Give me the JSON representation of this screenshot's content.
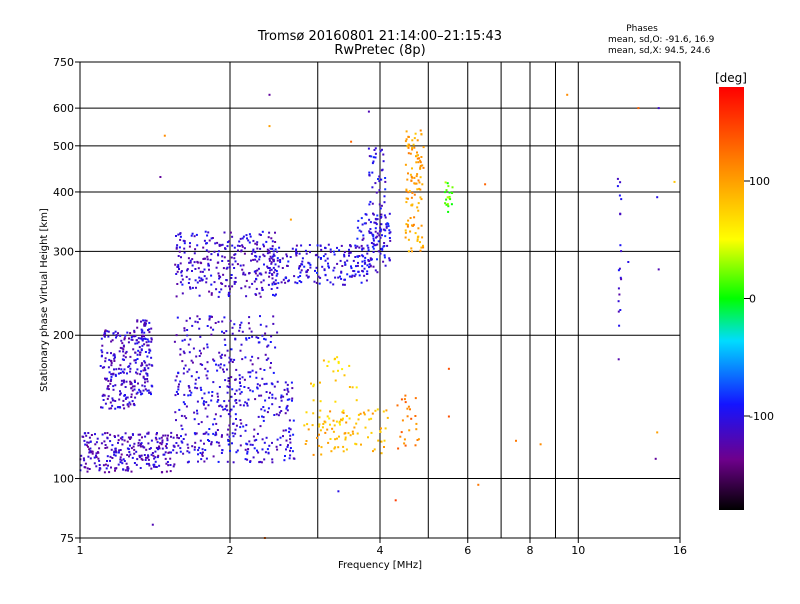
{
  "chart_data": {
    "type": "scatter",
    "title": "Tromsø 20160801 21:14:00–21:15:43",
    "subtitle": "RwPretec (8p)",
    "xlabel": "Frequency [MHz]",
    "ylabel": "Stationary phase Virtual Height [km]",
    "x_scale": "log",
    "y_scale": "log",
    "xlim": [
      1,
      16
    ],
    "ylim": [
      75,
      750
    ],
    "x_ticks": [
      1,
      2,
      4,
      6,
      8,
      10,
      16
    ],
    "x_minor_gridlines": [
      3,
      5,
      7,
      9
    ],
    "y_ticks": [
      75,
      100,
      200,
      300,
      400,
      500,
      600,
      750
    ],
    "grid": true,
    "stats": {
      "header": "Phases",
      "line_o": "mean, sd,O: -91.6, 16.9",
      "line_x": "mean, sd,X:  94.5, 24.6"
    },
    "colorbar": {
      "label": "[deg]",
      "range": [
        -180,
        180
      ],
      "ticks": [
        100,
        0,
        -100
      ],
      "placement": "right"
    },
    "clusters": [
      {
        "x": [
          1.0,
          1.55
        ],
        "y": [
          103,
          125
        ],
        "phase": -115,
        "count": 260
      },
      {
        "x": [
          1.1,
          1.3
        ],
        "y": [
          140,
          205
        ],
        "phase": -112,
        "count": 190
      },
      {
        "x": [
          1.3,
          1.4
        ],
        "y": [
          150,
          215
        ],
        "phase": -108,
        "count": 110
      },
      {
        "x": [
          1.55,
          2.7
        ],
        "y": [
          108,
          160
        ],
        "phase": -106,
        "count": 330
      },
      {
        "x": [
          1.55,
          2.5
        ],
        "y": [
          160,
          220
        ],
        "phase": -108,
        "count": 170
      },
      {
        "x": [
          1.55,
          2.5
        ],
        "y": [
          240,
          330
        ],
        "phase": -110,
        "count": 300
      },
      {
        "x": [
          2.4,
          3.8
        ],
        "y": [
          255,
          310
        ],
        "phase": -105,
        "count": 190
      },
      {
        "x": [
          3.6,
          4.2
        ],
        "y": [
          270,
          360
        ],
        "phase": -102,
        "count": 90
      },
      {
        "x": [
          3.8,
          4.1
        ],
        "y": [
          300,
          500
        ],
        "phase": -100,
        "count": 70
      },
      {
        "x": [
          2.8,
          4.2
        ],
        "y": [
          112,
          140
        ],
        "phase": 90,
        "count": 85
      },
      {
        "x": [
          2.9,
          3.6
        ],
        "y": [
          120,
          180
        ],
        "phase": 75,
        "count": 40
      },
      {
        "x": [
          4.5,
          4.9
        ],
        "y": [
          300,
          540
        ],
        "phase": 100,
        "count": 110
      },
      {
        "x": [
          4.3,
          4.8
        ],
        "y": [
          115,
          150
        ],
        "phase": 120,
        "count": 25
      },
      {
        "x": [
          5.4,
          5.6
        ],
        "y": [
          360,
          420
        ],
        "phase": 20,
        "count": 20
      },
      {
        "x": [
          12,
          12.2
        ],
        "y": [
          170,
          450
        ],
        "phase": -110,
        "count": 20
      }
    ],
    "scattered_points": [
      [
        1.45,
        430,
        -130
      ],
      [
        1.48,
        525,
        110
      ],
      [
        2.4,
        640,
        -130
      ],
      [
        2.4,
        550,
        100
      ],
      [
        3.8,
        590,
        -120
      ],
      [
        3.5,
        510,
        130
      ],
      [
        9.5,
        640,
        110
      ],
      [
        13.2,
        600,
        130
      ],
      [
        14.5,
        600,
        -110
      ],
      [
        15.6,
        420,
        80
      ],
      [
        14.4,
        390,
        -100
      ],
      [
        14.5,
        275,
        -120
      ],
      [
        12.6,
        285,
        -100
      ],
      [
        14.3,
        110,
        -130
      ],
      [
        6.3,
        97,
        120
      ],
      [
        4.3,
        90,
        150
      ],
      [
        3.3,
        94,
        -100
      ],
      [
        1.4,
        80,
        -120
      ],
      [
        6.5,
        415,
        130
      ],
      [
        7.5,
        120,
        120
      ],
      [
        8.4,
        118,
        110
      ],
      [
        14.4,
        125,
        100
      ],
      [
        5.5,
        170,
        140
      ],
      [
        5.5,
        135,
        140
      ],
      [
        2.35,
        75,
        130
      ],
      [
        3.9,
        490,
        -110
      ],
      [
        4.1,
        420,
        -120
      ],
      [
        2.65,
        350,
        100
      ]
    ]
  }
}
